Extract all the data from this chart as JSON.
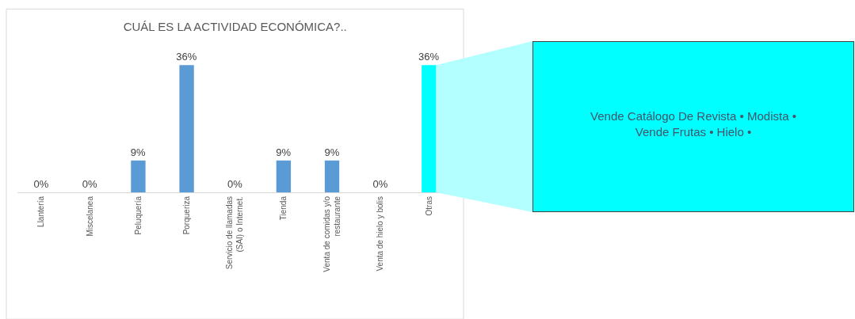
{
  "chart_data": {
    "type": "bar",
    "title": "CUÁL ES LA ACTIVIDAD ECONÓMICA?..",
    "categories": [
      "Llantería",
      "Miscelanea",
      "Peluquería",
      "Porqueriza",
      "Servicio de llamadas (SAI) o Internet.",
      "Tienda",
      "Venta de comidas y/o restaurante",
      "Venta de hielo y bolis",
      "Otras"
    ],
    "values": [
      0,
      0,
      9,
      36,
      0,
      9,
      9,
      0,
      36
    ],
    "value_labels": [
      "0%",
      "0%",
      "9%",
      "36%",
      "0%",
      "9%",
      "9%",
      "0%",
      "36%"
    ],
    "colors": [
      "#5b9bd5",
      "#5b9bd5",
      "#5b9bd5",
      "#5b9bd5",
      "#5b9bd5",
      "#5b9bd5",
      "#5b9bd5",
      "#5b9bd5",
      "#00ffff"
    ],
    "annotations": [
      "Vende Catálogo De Revista  •  Modista  •\nVende Frutas  •  Hielo  •"
    ],
    "grid": false
  }
}
